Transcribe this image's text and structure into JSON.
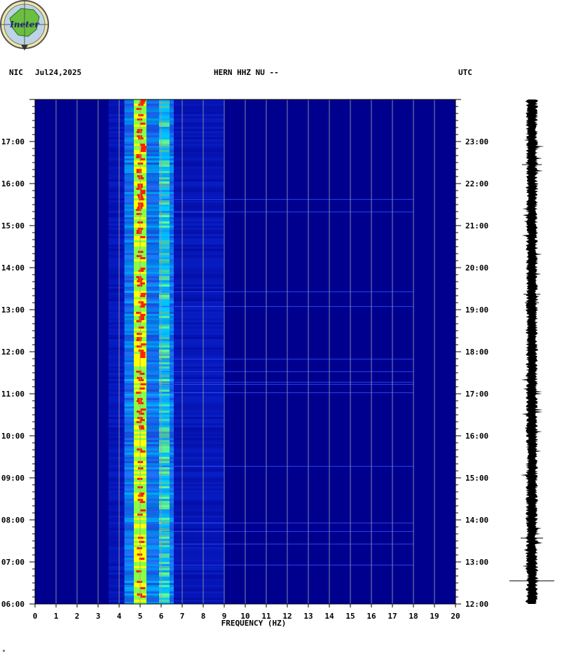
{
  "header": {
    "local_zone": "NIC",
    "date": "Jul24,2025",
    "station": "HERN HHZ NU --",
    "utc_label": "UTC"
  },
  "logo": {
    "text": "Ineter"
  },
  "footer_mark": "*",
  "chart_data": {
    "type": "heatmap",
    "title": "",
    "xlabel": "FREQUENCY (HZ)",
    "ylabel": "",
    "xlim": [
      0,
      20
    ],
    "x_ticks": [
      "0",
      "1",
      "2",
      "3",
      "4",
      "5",
      "6",
      "7",
      "8",
      "9",
      "10",
      "11",
      "12",
      "13",
      "14",
      "15",
      "16",
      "17",
      "18",
      "19",
      "20"
    ],
    "y_left_ticks": [
      "17:00",
      "16:00",
      "15:00",
      "14:00",
      "13:00",
      "12:00",
      "11:00",
      "10:00",
      "09:00",
      "08:00",
      "07:00",
      "06:00"
    ],
    "y_right_ticks": [
      "23:00",
      "22:00",
      "21:00",
      "20:00",
      "19:00",
      "18:00",
      "17:00",
      "16:00",
      "15:00",
      "14:00",
      "13:00",
      "12:00"
    ],
    "time_range_local": [
      "06:00",
      "18:00"
    ],
    "time_range_utc": [
      "12:00",
      "24:00"
    ],
    "grid": true,
    "colormap": [
      "#00008b",
      "#0000ff",
      "#00ccff",
      "#66ff66",
      "#ffff00",
      "#ff0000"
    ],
    "dominant_frequency_band_hz": [
      4.7,
      5.3
    ],
    "secondary_band_hz": [
      5.9,
      6.4
    ],
    "energy_cutoff_hz": 9
  }
}
